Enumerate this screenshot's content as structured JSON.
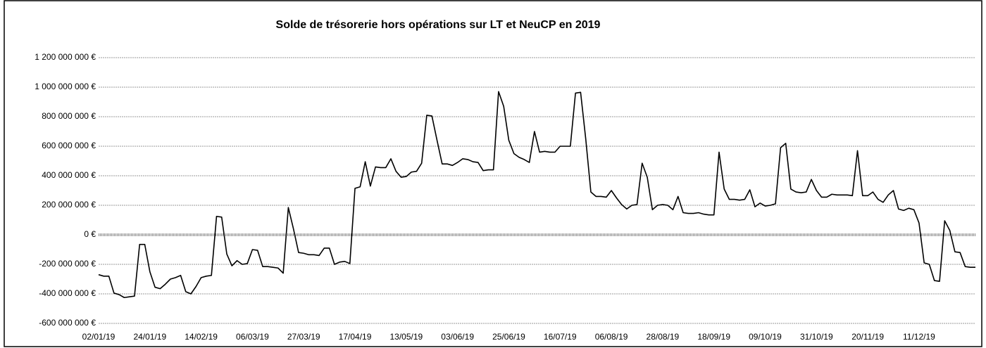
{
  "chart_data": {
    "type": "line",
    "title": "Solde de trésorerie hors opérations sur LT et NeuCP en 2019",
    "categories": [
      "02/01/19",
      null,
      null,
      null,
      null,
      null,
      null,
      null,
      null,
      null,
      "24/01/19",
      null,
      null,
      null,
      null,
      null,
      null,
      null,
      null,
      null,
      "14/02/19",
      null,
      null,
      null,
      null,
      null,
      null,
      null,
      null,
      null,
      "06/03/19",
      null,
      null,
      null,
      null,
      null,
      null,
      null,
      null,
      null,
      "27/03/19",
      null,
      null,
      null,
      null,
      null,
      null,
      null,
      null,
      null,
      "17/04/19",
      null,
      null,
      null,
      null,
      null,
      null,
      null,
      null,
      null,
      "13/05/19",
      null,
      null,
      null,
      null,
      null,
      null,
      null,
      null,
      null,
      "03/06/19",
      null,
      null,
      null,
      null,
      null,
      null,
      null,
      null,
      null,
      "25/06/19",
      null,
      null,
      null,
      null,
      null,
      null,
      null,
      null,
      null,
      "16/07/19",
      null,
      null,
      null,
      null,
      null,
      null,
      null,
      null,
      null,
      "06/08/19",
      null,
      null,
      null,
      null,
      null,
      null,
      null,
      null,
      null,
      "28/08/19",
      null,
      null,
      null,
      null,
      null,
      null,
      null,
      null,
      null,
      "18/09/19",
      null,
      null,
      null,
      null,
      null,
      null,
      null,
      null,
      null,
      "09/10/19",
      null,
      null,
      null,
      null,
      null,
      null,
      null,
      null,
      null,
      "31/10/19",
      null,
      null,
      null,
      null,
      null,
      null,
      null,
      null,
      null,
      "20/11/19",
      null,
      null,
      null,
      null,
      null,
      null,
      null,
      null,
      null,
      "11/12/19",
      null,
      null,
      null,
      null,
      null,
      null,
      null,
      null,
      null,
      null,
      null
    ],
    "series": [
      {
        "color": "#000000",
        "values": [
          -270000000,
          -280000000,
          -280000000,
          -395000000,
          -405000000,
          -425000000,
          -420000000,
          -415000000,
          -65000000,
          -65000000,
          -250000000,
          -355000000,
          -365000000,
          -335000000,
          -300000000,
          -290000000,
          -275000000,
          -385000000,
          -400000000,
          -350000000,
          -290000000,
          -280000000,
          -275000000,
          125000000,
          120000000,
          -130000000,
          -210000000,
          -175000000,
          -200000000,
          -195000000,
          -100000000,
          -105000000,
          -215000000,
          -215000000,
          -220000000,
          -225000000,
          -260000000,
          185000000,
          40000000,
          -120000000,
          -125000000,
          -135000000,
          -135000000,
          -140000000,
          -90000000,
          -90000000,
          -200000000,
          -185000000,
          -180000000,
          -195000000,
          315000000,
          325000000,
          495000000,
          330000000,
          460000000,
          455000000,
          455000000,
          515000000,
          430000000,
          390000000,
          395000000,
          425000000,
          430000000,
          485000000,
          810000000,
          805000000,
          640000000,
          480000000,
          480000000,
          470000000,
          490000000,
          515000000,
          510000000,
          495000000,
          490000000,
          435000000,
          440000000,
          440000000,
          970000000,
          870000000,
          640000000,
          550000000,
          525000000,
          510000000,
          490000000,
          700000000,
          560000000,
          565000000,
          560000000,
          560000000,
          600000000,
          600000000,
          600000000,
          960000000,
          965000000,
          650000000,
          290000000,
          260000000,
          260000000,
          255000000,
          300000000,
          250000000,
          205000000,
          175000000,
          200000000,
          205000000,
          485000000,
          390000000,
          170000000,
          200000000,
          205000000,
          200000000,
          170000000,
          260000000,
          150000000,
          145000000,
          145000000,
          150000000,
          140000000,
          135000000,
          135000000,
          560000000,
          310000000,
          240000000,
          240000000,
          235000000,
          240000000,
          305000000,
          190000000,
          215000000,
          195000000,
          200000000,
          210000000,
          590000000,
          620000000,
          310000000,
          290000000,
          285000000,
          290000000,
          375000000,
          300000000,
          255000000,
          255000000,
          275000000,
          270000000,
          270000000,
          270000000,
          265000000,
          570000000,
          265000000,
          265000000,
          290000000,
          240000000,
          220000000,
          270000000,
          300000000,
          175000000,
          165000000,
          180000000,
          170000000,
          80000000,
          -190000000,
          -200000000,
          -310000000,
          -315000000,
          95000000,
          30000000,
          -115000000,
          -120000000,
          -215000000,
          -220000000,
          -220000000
        ]
      }
    ],
    "ylim": [
      -600000000,
      1200000000
    ],
    "yticks": [
      {
        "value": -600000000,
        "label": "-600 000 000 €"
      },
      {
        "value": -400000000,
        "label": "-400 000 000 €"
      },
      {
        "value": -200000000,
        "label": "-200 000 000 €"
      },
      {
        "value": 0,
        "label": "0 €"
      },
      {
        "value": 200000000,
        "label": "200 000 000 €"
      },
      {
        "value": 400000000,
        "label": "400 000 000 €"
      },
      {
        "value": 600000000,
        "label": "600 000 000 €"
      },
      {
        "value": 800000000,
        "label": "800 000 000 €"
      },
      {
        "value": 1000000000,
        "label": "1 000 000 000 €"
      },
      {
        "value": 1200000000,
        "label": "1 200 000 000 €"
      }
    ],
    "grid": true
  }
}
